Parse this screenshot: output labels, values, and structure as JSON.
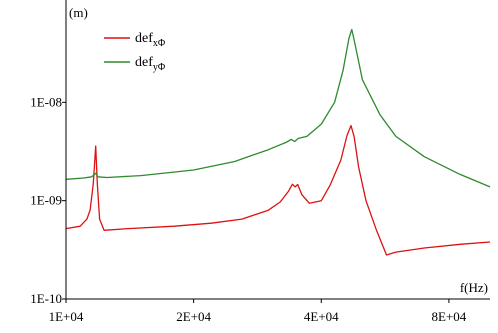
{
  "chart_data": {
    "type": "line",
    "xscale": "log",
    "yscale": "log",
    "xlim": [
      10000,
      100000
    ],
    "ylim": [
      1e-10,
      1e-07
    ],
    "x_ticks": [
      {
        "value": 10000,
        "label": "1E+04"
      },
      {
        "value": 20000,
        "label": "2E+04"
      },
      {
        "value": 40000,
        "label": "4E+04"
      },
      {
        "value": 80000,
        "label": "8E+04"
      }
    ],
    "y_ticks": [
      {
        "value": 1e-10,
        "label": "1E-10"
      },
      {
        "value": 1e-09,
        "label": "1E-09"
      },
      {
        "value": 1e-08,
        "label": "1E-08"
      }
    ],
    "xlabel": "f(Hz)",
    "ylabel": "(m)",
    "grid": false,
    "legend_position": "top-left",
    "series": [
      {
        "name": "def",
        "name_subscript": "xΦ",
        "color": "#dd1111",
        "points": [
          [
            10000,
            5.2e-10
          ],
          [
            10800,
            5.5e-10
          ],
          [
            11200,
            6.5e-10
          ],
          [
            11400,
            8e-10
          ],
          [
            11600,
            1.5e-09
          ],
          [
            11750,
            3.6e-09
          ],
          [
            11850,
            1.5e-09
          ],
          [
            12000,
            6.5e-10
          ],
          [
            12300,
            5e-10
          ],
          [
            14000,
            5.2e-10
          ],
          [
            18000,
            5.5e-10
          ],
          [
            22000,
            5.9e-10
          ],
          [
            26000,
            6.5e-10
          ],
          [
            30000,
            8e-10
          ],
          [
            32000,
            9.7e-10
          ],
          [
            33500,
            1.25e-09
          ],
          [
            34200,
            1.47e-09
          ],
          [
            34700,
            1.38e-09
          ],
          [
            35200,
            1.46e-09
          ],
          [
            36000,
            1.15e-09
          ],
          [
            37500,
            9.4e-10
          ],
          [
            40000,
            1e-09
          ],
          [
            42000,
            1.45e-09
          ],
          [
            44500,
            2.6e-09
          ],
          [
            46000,
            4.6e-09
          ],
          [
            47000,
            5.8e-09
          ],
          [
            47800,
            4.5e-09
          ],
          [
            49000,
            2.2e-09
          ],
          [
            51000,
            1e-09
          ],
          [
            54000,
            5e-10
          ],
          [
            57000,
            2.8e-10
          ],
          [
            60000,
            3e-10
          ],
          [
            70000,
            3.3e-10
          ],
          [
            85000,
            3.6e-10
          ],
          [
            100000,
            3.8e-10
          ]
        ]
      },
      {
        "name": "def",
        "name_subscript": "yΦ",
        "color": "#2f8a2f",
        "points": [
          [
            10000,
            1.65e-09
          ],
          [
            11000,
            1.7e-09
          ],
          [
            11500,
            1.75e-09
          ],
          [
            11750,
            1.9e-09
          ],
          [
            11900,
            1.75e-09
          ],
          [
            12500,
            1.72e-09
          ],
          [
            15000,
            1.8e-09
          ],
          [
            20000,
            2.05e-09
          ],
          [
            25000,
            2.5e-09
          ],
          [
            30000,
            3.3e-09
          ],
          [
            33000,
            3.9e-09
          ],
          [
            34000,
            4.2e-09
          ],
          [
            34600,
            4e-09
          ],
          [
            35300,
            4.3e-09
          ],
          [
            37000,
            4.5e-09
          ],
          [
            40000,
            6e-09
          ],
          [
            43000,
            1e-08
          ],
          [
            45000,
            2.1e-08
          ],
          [
            46500,
            4.5e-08
          ],
          [
            47200,
            5.5e-08
          ],
          [
            48000,
            4e-08
          ],
          [
            50000,
            1.7e-08
          ],
          [
            55000,
            7.5e-09
          ],
          [
            60000,
            4.5e-09
          ],
          [
            70000,
            2.8e-09
          ],
          [
            85000,
            1.85e-09
          ],
          [
            100000,
            1.38e-09
          ]
        ]
      }
    ]
  }
}
